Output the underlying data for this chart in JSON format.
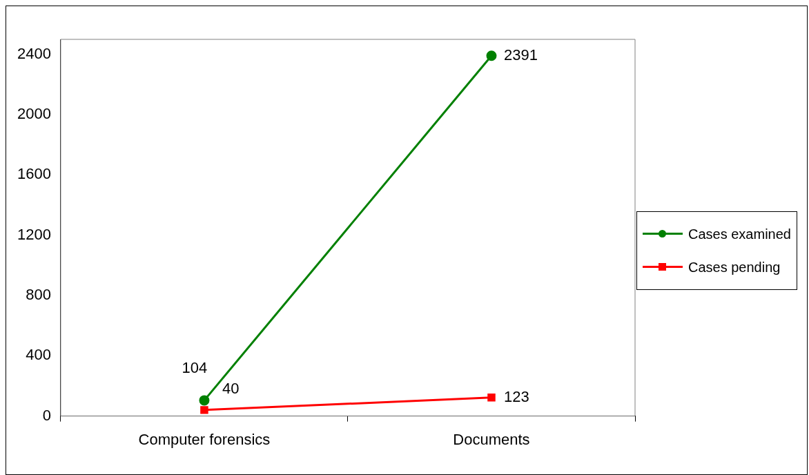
{
  "chart_data": {
    "type": "line",
    "categories": [
      "Computer forensics",
      "Documents"
    ],
    "series": [
      {
        "name": "Cases examined",
        "color": "#008000",
        "values": [
          104,
          2391
        ],
        "marker": "circle"
      },
      {
        "name": "Cases pending",
        "color": "#ff0000",
        "values": [
          40,
          123
        ],
        "marker": "square"
      }
    ],
    "ylim": [
      0,
      2500
    ],
    "yticks": [
      0,
      400,
      800,
      1200,
      1600,
      2000,
      2400
    ],
    "grid": false,
    "legend": "right",
    "data_labels": true,
    "line_style": "solid"
  }
}
